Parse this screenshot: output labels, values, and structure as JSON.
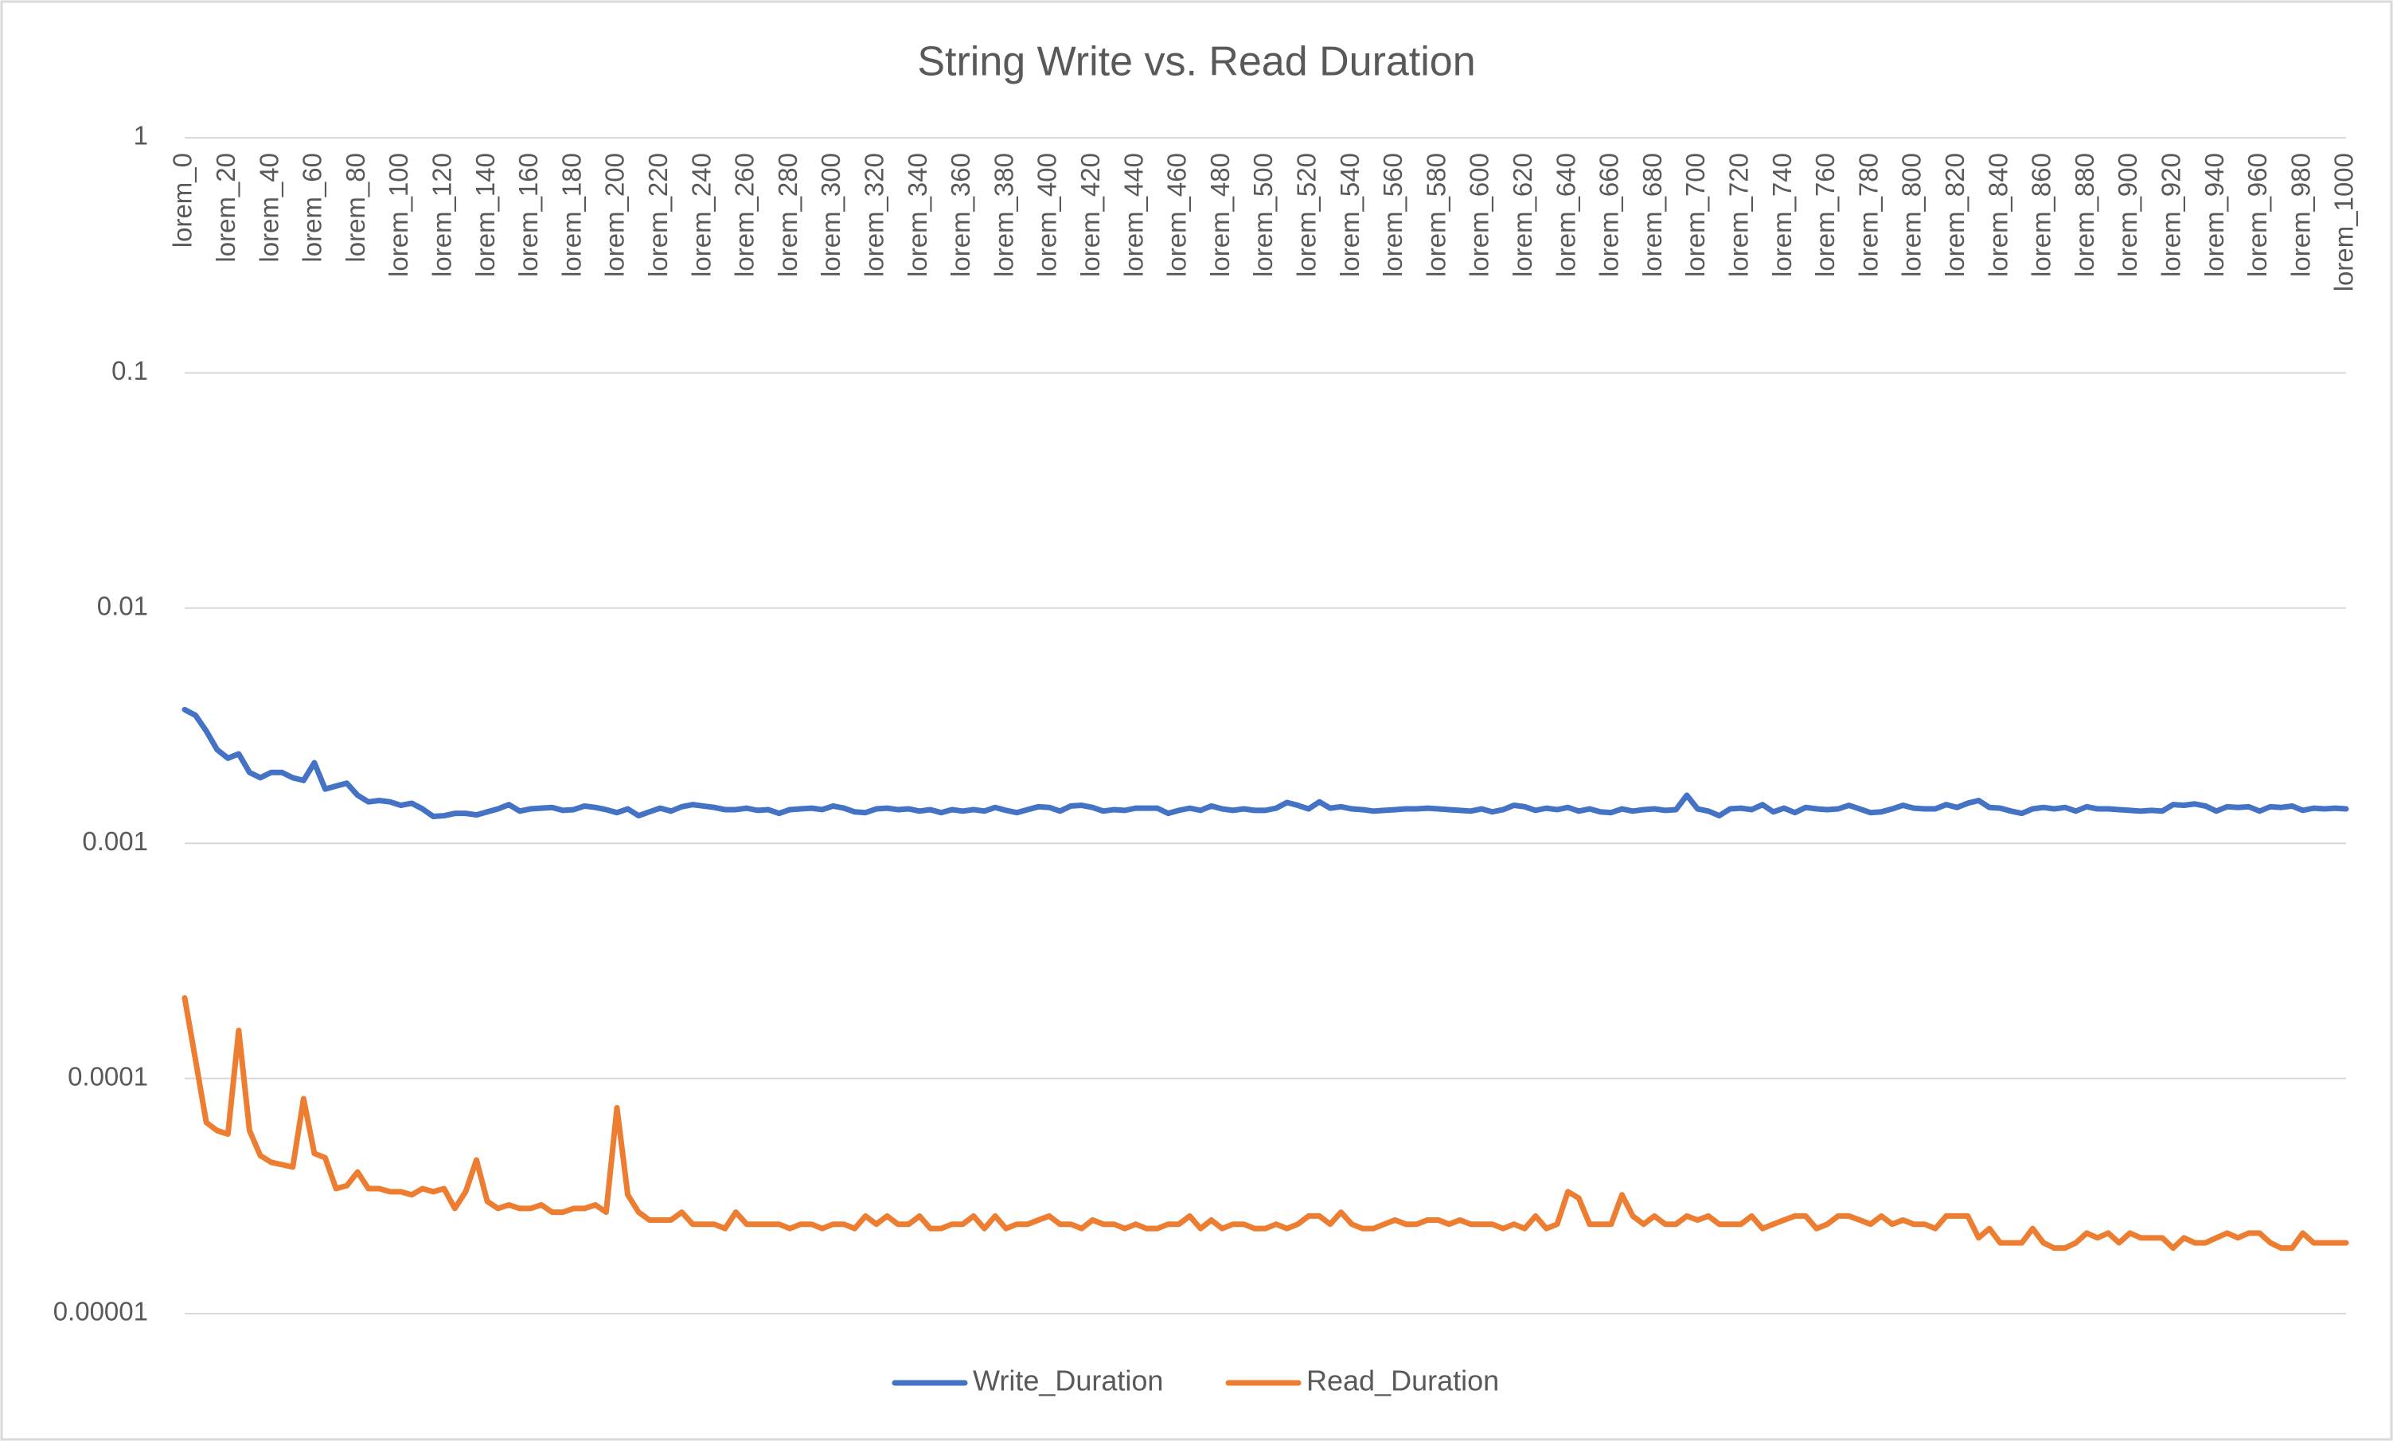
{
  "chart_data": {
    "type": "line",
    "title": "String Write vs. Read Duration",
    "categories": [
      "lorem_0",
      null,
      null,
      null,
      "lorem_20",
      null,
      null,
      null,
      "lorem_40",
      null,
      null,
      null,
      "lorem_60",
      null,
      null,
      null,
      "lorem_80",
      null,
      null,
      null,
      "lorem_100",
      null,
      null,
      null,
      "lorem_120",
      null,
      null,
      null,
      "lorem_140",
      null,
      null,
      null,
      "lorem_160",
      null,
      null,
      null,
      "lorem_180",
      null,
      null,
      null,
      "lorem_200",
      null,
      null,
      null,
      "lorem_220",
      null,
      null,
      null,
      "lorem_240",
      null,
      null,
      null,
      "lorem_260",
      null,
      null,
      null,
      "lorem_280",
      null,
      null,
      null,
      "lorem_300",
      null,
      null,
      null,
      "lorem_320",
      null,
      null,
      null,
      "lorem_340",
      null,
      null,
      null,
      "lorem_360",
      null,
      null,
      null,
      "lorem_380",
      null,
      null,
      null,
      "lorem_400",
      null,
      null,
      null,
      "lorem_420",
      null,
      null,
      null,
      "lorem_440",
      null,
      null,
      null,
      "lorem_460",
      null,
      null,
      null,
      "lorem_480",
      null,
      null,
      null,
      "lorem_500",
      null,
      null,
      null,
      "lorem_520",
      null,
      null,
      null,
      "lorem_540",
      null,
      null,
      null,
      "lorem_560",
      null,
      null,
      null,
      "lorem_580",
      null,
      null,
      null,
      "lorem_600",
      null,
      null,
      null,
      "lorem_620",
      null,
      null,
      null,
      "lorem_640",
      null,
      null,
      null,
      "lorem_660",
      null,
      null,
      null,
      "lorem_680",
      null,
      null,
      null,
      "lorem_700",
      null,
      null,
      null,
      "lorem_720",
      null,
      null,
      null,
      "lorem_740",
      null,
      null,
      null,
      "lorem_760",
      null,
      null,
      null,
      "lorem_780",
      null,
      null,
      null,
      "lorem_800",
      null,
      null,
      null,
      "lorem_820",
      null,
      null,
      null,
      "lorem_840",
      null,
      null,
      null,
      "lorem_860",
      null,
      null,
      null,
      "lorem_880",
      null,
      null,
      null,
      "lorem_900",
      null,
      null,
      null,
      "lorem_920",
      null,
      null,
      null,
      "lorem_940",
      null,
      null,
      null,
      "lorem_960",
      null,
      null,
      null,
      "lorem_980",
      null,
      null,
      null,
      "lorem_1000"
    ],
    "series": [
      {
        "name": "Write_Duration",
        "color": "#4472c4",
        "values": [
          0.0037,
          0.0035,
          0.003,
          0.0025,
          0.0023,
          0.0024,
          0.002,
          0.0019,
          0.002,
          0.002,
          0.0019,
          0.00185,
          0.0022,
          0.0017,
          0.00175,
          0.0018,
          0.0016,
          0.0015,
          0.00152,
          0.0015,
          0.00145,
          0.00148,
          0.0014,
          0.0013,
          0.00131,
          0.00134,
          0.00134,
          0.00132,
          0.00136,
          0.0014,
          0.00146,
          0.00137,
          0.0014,
          0.00141,
          0.00142,
          0.00138,
          0.00139,
          0.00144,
          0.00142,
          0.00139,
          0.00135,
          0.0014,
          0.00131,
          0.00136,
          0.00141,
          0.00137,
          0.00143,
          0.00146,
          0.00144,
          0.00142,
          0.00139,
          0.00139,
          0.00141,
          0.00138,
          0.00139,
          0.00134,
          0.00139,
          0.0014,
          0.00141,
          0.00139,
          0.00144,
          0.00141,
          0.00136,
          0.00135,
          0.0014,
          0.00141,
          0.00139,
          0.0014,
          0.00137,
          0.00139,
          0.00135,
          0.00139,
          0.00137,
          0.00139,
          0.00137,
          0.00142,
          0.00138,
          0.00135,
          0.00139,
          0.00143,
          0.00142,
          0.00137,
          0.00144,
          0.00145,
          0.00142,
          0.00137,
          0.00139,
          0.00138,
          0.00141,
          0.00141,
          0.00141,
          0.00134,
          0.00138,
          0.00141,
          0.00138,
          0.00144,
          0.0014,
          0.00138,
          0.0014,
          0.00138,
          0.00138,
          0.00141,
          0.00149,
          0.00145,
          0.0014,
          0.0015,
          0.00141,
          0.00143,
          0.0014,
          0.00139,
          0.00137,
          0.00138,
          0.00139,
          0.0014,
          0.0014,
          0.00141,
          0.0014,
          0.00139,
          0.00138,
          0.00137,
          0.0014,
          0.00136,
          0.00139,
          0.00145,
          0.00143,
          0.00138,
          0.00141,
          0.00139,
          0.00142,
          0.00137,
          0.0014,
          0.00136,
          0.00135,
          0.0014,
          0.00137,
          0.00139,
          0.0014,
          0.00138,
          0.00139,
          0.0016,
          0.0014,
          0.00137,
          0.00131,
          0.0014,
          0.00141,
          0.00139,
          0.00146,
          0.00136,
          0.00141,
          0.00135,
          0.00142,
          0.0014,
          0.00139,
          0.0014,
          0.00145,
          0.0014,
          0.00135,
          0.00136,
          0.0014,
          0.00145,
          0.00141,
          0.0014,
          0.0014,
          0.00146,
          0.00142,
          0.00148,
          0.00152,
          0.00142,
          0.00141,
          0.00137,
          0.00134,
          0.0014,
          0.00142,
          0.0014,
          0.00142,
          0.00137,
          0.00143,
          0.0014,
          0.0014,
          0.00139,
          0.00138,
          0.00137,
          0.00138,
          0.00137,
          0.00146,
          0.00145,
          0.00147,
          0.00144,
          0.00137,
          0.00143,
          0.00142,
          0.00143,
          0.00137,
          0.00143,
          0.00142,
          0.00144,
          0.00138,
          0.00141,
          0.0014,
          0.00141,
          0.0014
        ]
      },
      {
        "name": "Read_Duration",
        "color": "#ed7d31",
        "values": [
          0.00022,
          0.00012,
          6.5e-05,
          6e-05,
          5.8e-05,
          0.00016,
          6e-05,
          4.7e-05,
          4.4e-05,
          4.3e-05,
          4.2e-05,
          8.2e-05,
          4.8e-05,
          4.6e-05,
          3.4e-05,
          3.5e-05,
          4e-05,
          3.4e-05,
          3.4e-05,
          3.3e-05,
          3.3e-05,
          3.2e-05,
          3.4e-05,
          3.3e-05,
          3.4e-05,
          2.8e-05,
          3.3e-05,
          4.5e-05,
          3e-05,
          2.8e-05,
          2.9e-05,
          2.8e-05,
          2.8e-05,
          2.9e-05,
          2.7e-05,
          2.7e-05,
          2.8e-05,
          2.8e-05,
          2.9e-05,
          2.7e-05,
          7.5e-05,
          3.2e-05,
          2.7e-05,
          2.5e-05,
          2.5e-05,
          2.5e-05,
          2.7e-05,
          2.4e-05,
          2.4e-05,
          2.4e-05,
          2.3e-05,
          2.7e-05,
          2.4e-05,
          2.4e-05,
          2.4e-05,
          2.4e-05,
          2.3e-05,
          2.4e-05,
          2.4e-05,
          2.3e-05,
          2.4e-05,
          2.4e-05,
          2.3e-05,
          2.6e-05,
          2.4e-05,
          2.6e-05,
          2.4e-05,
          2.4e-05,
          2.6e-05,
          2.3e-05,
          2.3e-05,
          2.4e-05,
          2.4e-05,
          2.6e-05,
          2.3e-05,
          2.6e-05,
          2.3e-05,
          2.4e-05,
          2.4e-05,
          2.5e-05,
          2.6e-05,
          2.4e-05,
          2.4e-05,
          2.3e-05,
          2.5e-05,
          2.4e-05,
          2.4e-05,
          2.3e-05,
          2.4e-05,
          2.3e-05,
          2.3e-05,
          2.4e-05,
          2.4e-05,
          2.6e-05,
          2.3e-05,
          2.5e-05,
          2.3e-05,
          2.4e-05,
          2.4e-05,
          2.3e-05,
          2.3e-05,
          2.4e-05,
          2.3e-05,
          2.4e-05,
          2.6e-05,
          2.6e-05,
          2.4e-05,
          2.7e-05,
          2.4e-05,
          2.3e-05,
          2.3e-05,
          2.4e-05,
          2.5e-05,
          2.4e-05,
          2.4e-05,
          2.5e-05,
          2.5e-05,
          2.4e-05,
          2.5e-05,
          2.4e-05,
          2.4e-05,
          2.4e-05,
          2.3e-05,
          2.4e-05,
          2.3e-05,
          2.6e-05,
          2.3e-05,
          2.4e-05,
          3.3e-05,
          3.1e-05,
          2.4e-05,
          2.4e-05,
          2.4e-05,
          3.2e-05,
          2.6e-05,
          2.4e-05,
          2.6e-05,
          2.4e-05,
          2.4e-05,
          2.6e-05,
          2.5e-05,
          2.6e-05,
          2.4e-05,
          2.4e-05,
          2.4e-05,
          2.6e-05,
          2.3e-05,
          2.4e-05,
          2.5e-05,
          2.6e-05,
          2.6e-05,
          2.3e-05,
          2.4e-05,
          2.6e-05,
          2.6e-05,
          2.5e-05,
          2.4e-05,
          2.6e-05,
          2.4e-05,
          2.5e-05,
          2.4e-05,
          2.4e-05,
          2.3e-05,
          2.6e-05,
          2.6e-05,
          2.6e-05,
          2.1e-05,
          2.3e-05,
          2e-05,
          2e-05,
          2e-05,
          2.3e-05,
          2e-05,
          1.9e-05,
          1.9e-05,
          2e-05,
          2.2e-05,
          2.1e-05,
          2.2e-05,
          2e-05,
          2.2e-05,
          2.1e-05,
          2.1e-05,
          2.1e-05,
          1.9e-05,
          2.1e-05,
          2e-05,
          2e-05,
          2.1e-05,
          2.2e-05,
          2.1e-05,
          2.2e-05,
          2.2e-05,
          2e-05,
          1.9e-05,
          1.9e-05,
          2.2e-05,
          2e-05,
          2e-05,
          2e-05,
          2e-05
        ]
      }
    ],
    "ylim": [
      1e-05,
      1
    ],
    "yticks": [
      {
        "value": 1e-05,
        "label": "0.00001"
      },
      0.0001,
      0.001,
      0.01,
      0.1,
      1
    ],
    "ylog": true,
    "grid": true,
    "legend": "bottom"
  }
}
